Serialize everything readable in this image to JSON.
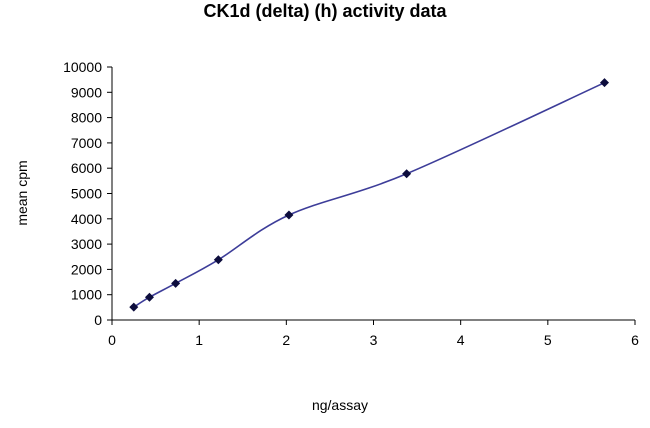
{
  "chart_data": {
    "type": "scatter",
    "title": "CK1d (delta) (h) activity data",
    "xlabel": "ng/assay",
    "ylabel": "mean cpm",
    "xlim": [
      0,
      6
    ],
    "ylim": [
      0,
      10000
    ],
    "xticks": [
      0,
      1,
      2,
      3,
      4,
      5,
      6
    ],
    "yticks": [
      0,
      1000,
      2000,
      3000,
      4000,
      5000,
      6000,
      7000,
      8000,
      9000,
      10000
    ],
    "grid": false,
    "legend": "none",
    "line_style": "smooth",
    "colors": {
      "line": "#3d3d99",
      "marker": "#0d0d3d",
      "axis": "#000000"
    },
    "series": [
      {
        "x": [
          0.25,
          0.43,
          0.73,
          1.22,
          2.03,
          3.38,
          5.65
        ],
        "y": [
          510,
          900,
          1450,
          2380,
          4150,
          5780,
          9380
        ]
      }
    ]
  }
}
